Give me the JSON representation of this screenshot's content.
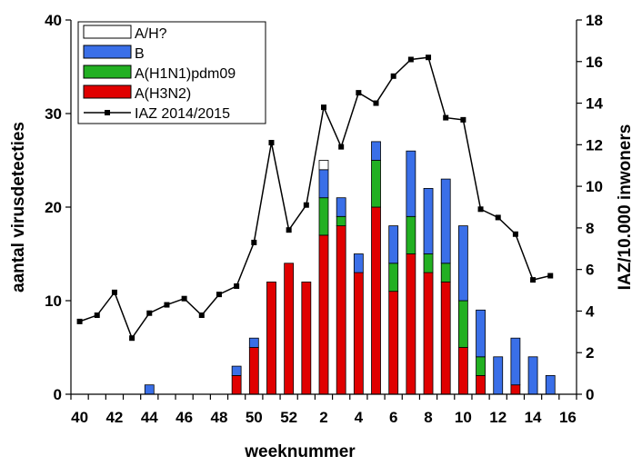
{
  "chart_data": {
    "type": "bar",
    "x_ticks": [
      "40",
      "42",
      "44",
      "46",
      "48",
      "50",
      "52",
      "2",
      "4",
      "6",
      "8",
      "10",
      "12",
      "14",
      "16"
    ],
    "x_label": "weeknummer",
    "y_label_left": "aantal virusdetecties",
    "y_label_right": "IAZ/10.000 inwoners",
    "y_left_lim": [
      0,
      40
    ],
    "y_left_ticks": [
      "0",
      "10",
      "20",
      "30",
      "40"
    ],
    "y_right_lim": [
      0,
      18
    ],
    "y_right_ticks": [
      "0",
      "2",
      "4",
      "6",
      "8",
      "10",
      "12",
      "14",
      "16",
      "18"
    ],
    "weeks": [
      "40",
      "41",
      "42",
      "43",
      "44",
      "45",
      "46",
      "47",
      "48",
      "49",
      "50",
      "51",
      "52",
      "1",
      "2",
      "3",
      "4",
      "5",
      "6",
      "7",
      "8",
      "9",
      "10",
      "11",
      "12",
      "13",
      "14",
      "15",
      "16"
    ],
    "bar_series": [
      {
        "name": "A(H3N2)",
        "color": "#e00000",
        "values": [
          0,
          0,
          0,
          0,
          0,
          0,
          0,
          0,
          0,
          2,
          5,
          12,
          14,
          12,
          17,
          18,
          13,
          20,
          11,
          15,
          13,
          12,
          5,
          2,
          0,
          1,
          0,
          0,
          0
        ]
      },
      {
        "name": "A(H1N1)pdm09",
        "color": "#22b022",
        "values": [
          0,
          0,
          0,
          0,
          0,
          0,
          0,
          0,
          0,
          0,
          0,
          0,
          0,
          0,
          4,
          1,
          0,
          5,
          3,
          4,
          2,
          2,
          5,
          2,
          0,
          0,
          0,
          0,
          0
        ]
      },
      {
        "name": "B",
        "color": "#3a6fe8",
        "values": [
          0,
          0,
          0,
          0,
          1,
          0,
          0,
          0,
          0,
          1,
          1,
          0,
          0,
          0,
          3,
          2,
          2,
          2,
          4,
          7,
          7,
          9,
          8,
          5,
          4,
          5,
          4,
          2,
          0
        ]
      },
      {
        "name": "A/H?",
        "color": "#ffffff",
        "values": [
          0,
          0,
          0,
          0,
          0,
          0,
          0,
          0,
          0,
          0,
          0,
          0,
          0,
          0,
          1,
          0,
          0,
          0,
          0,
          0,
          0,
          0,
          0,
          0,
          0,
          0,
          0,
          0,
          0
        ]
      }
    ],
    "line_series": {
      "name": "IAZ 2014/2015",
      "axis": "right",
      "values": [
        3.5,
        3.8,
        4.9,
        2.7,
        3.9,
        4.3,
        4.6,
        3.8,
        4.8,
        5.2,
        7.3,
        12.1,
        7.9,
        9.1,
        13.8,
        11.9,
        14.5,
        14.0,
        15.3,
        16.1,
        16.2,
        13.3,
        13.2,
        8.9,
        8.5,
        7.7,
        5.5,
        5.7,
        null
      ]
    },
    "legend": [
      "A/H?",
      "B",
      "A(H1N1)pdm09",
      "A(H3N2)",
      "IAZ 2014/2015"
    ],
    "legend_position": "top-left"
  }
}
